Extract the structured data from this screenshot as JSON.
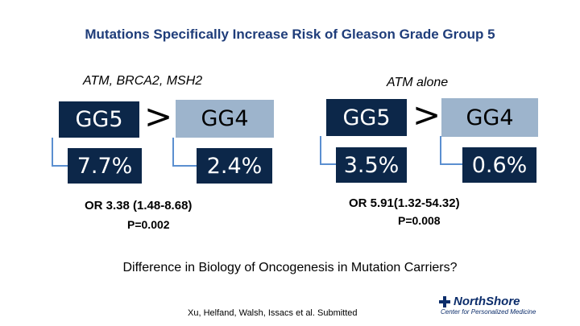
{
  "title": "Mutations Specifically Increase Risk of Gleason Grade Group 5",
  "left": {
    "label": "ATM, BRCA2, MSH2",
    "gg_high": "GG5",
    "gg_low": "GG4",
    "comparator": ">",
    "pct_high": "7.7%",
    "pct_low": "2.4%",
    "or_text": "OR 3.38 (1.48-8.68)",
    "p_text": "P=0.002"
  },
  "right": {
    "label": "ATM alone",
    "gg_high": "GG5",
    "gg_low": "GG4",
    "comparator": ">",
    "pct_high": "3.5%",
    "pct_low": "0.6%",
    "or_text": "OR 5.91(1.32-54.32)",
    "p_text": "P=0.008"
  },
  "question": "Difference in Biology of Oncogenesis in Mutation Carriers?",
  "citation": "Xu, Helfand, Walsh, Issacs et al. Submitted",
  "logo": {
    "name": "NorthShore",
    "subtitle": "Center for Personalized Medicine",
    "cross_icon": "medical-cross-icon"
  },
  "colors": {
    "title": "#1f3d7a",
    "dark_box": "#0c2749",
    "light_box": "#9db4cc",
    "connector": "#5b8fd0"
  }
}
